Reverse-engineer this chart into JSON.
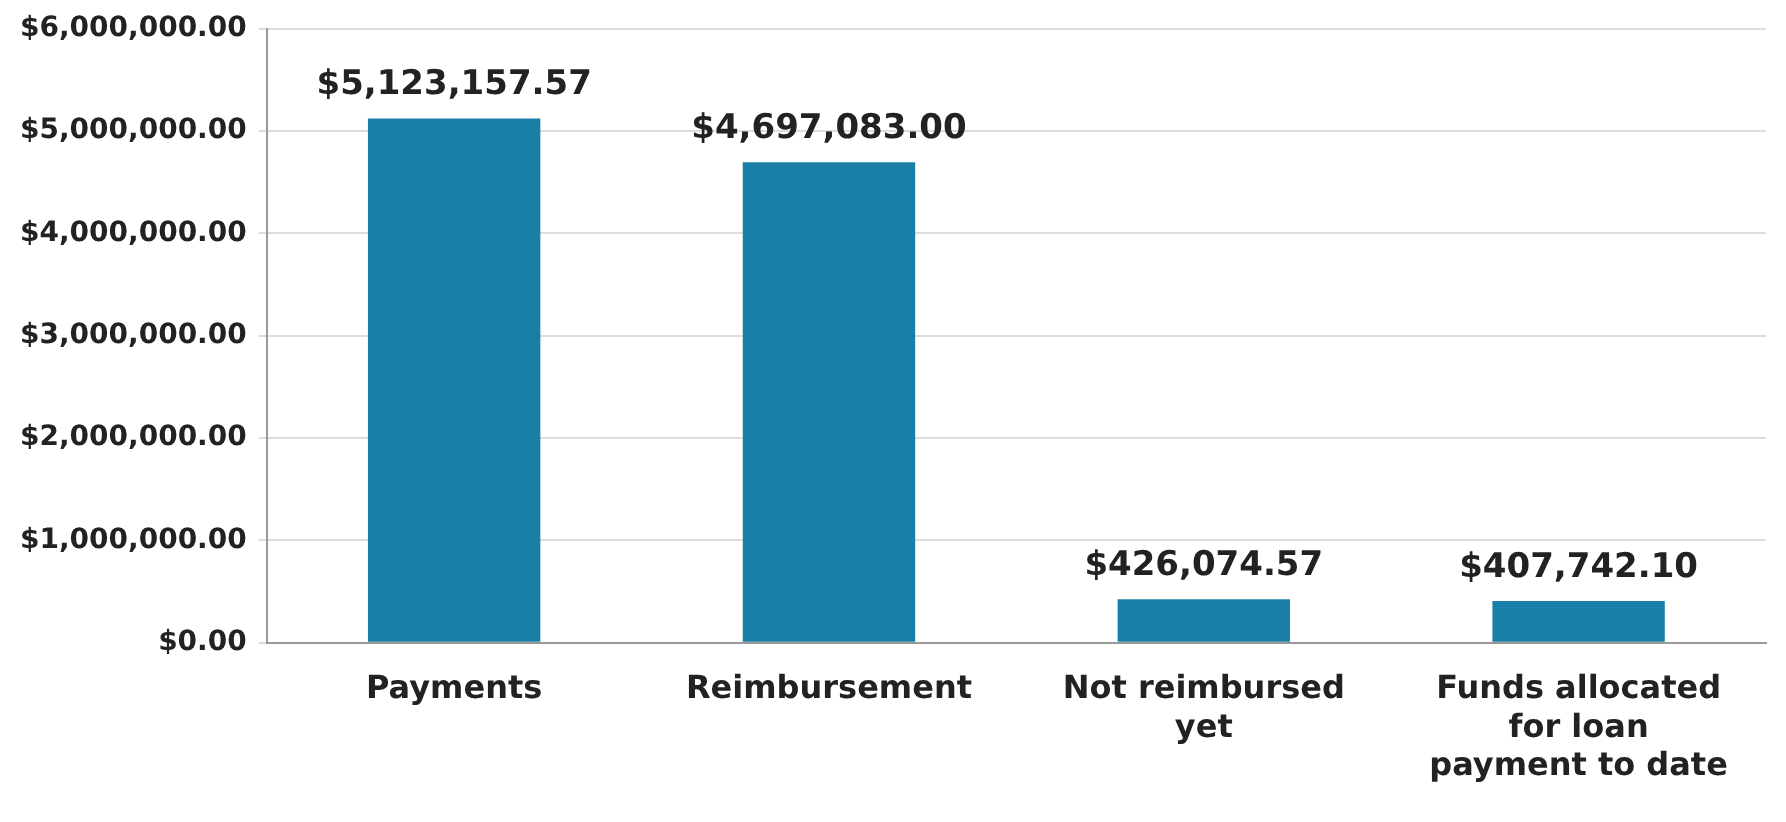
{
  "chart_data": {
    "type": "bar",
    "categories": [
      "Payments",
      "Reimbursement",
      "Not reimbursed yet",
      "Funds allocated for loan payment to date"
    ],
    "values": [
      5123157.57,
      4697083.0,
      426074.57,
      407742.1
    ],
    "value_labels": [
      "$5,123,157.57",
      "$4,697,083.00",
      "$426,074.57",
      "$407,742.10"
    ],
    "color": "#1a7fa6",
    "ylim": [
      0,
      6000000
    ],
    "yticks": [
      {
        "value": 0,
        "label": "$0.00"
      },
      {
        "value": 1000000,
        "label": "$1,000,000.00"
      },
      {
        "value": 2000000,
        "label": "$2,000,000.00"
      },
      {
        "value": 3000000,
        "label": "$3,000,000.00"
      },
      {
        "value": 4000000,
        "label": "$4,000,000.00"
      },
      {
        "value": 5000000,
        "label": "$5,000,000.00"
      },
      {
        "value": 6000000,
        "label": "$6,000,000.00"
      }
    ],
    "grid": "y"
  }
}
